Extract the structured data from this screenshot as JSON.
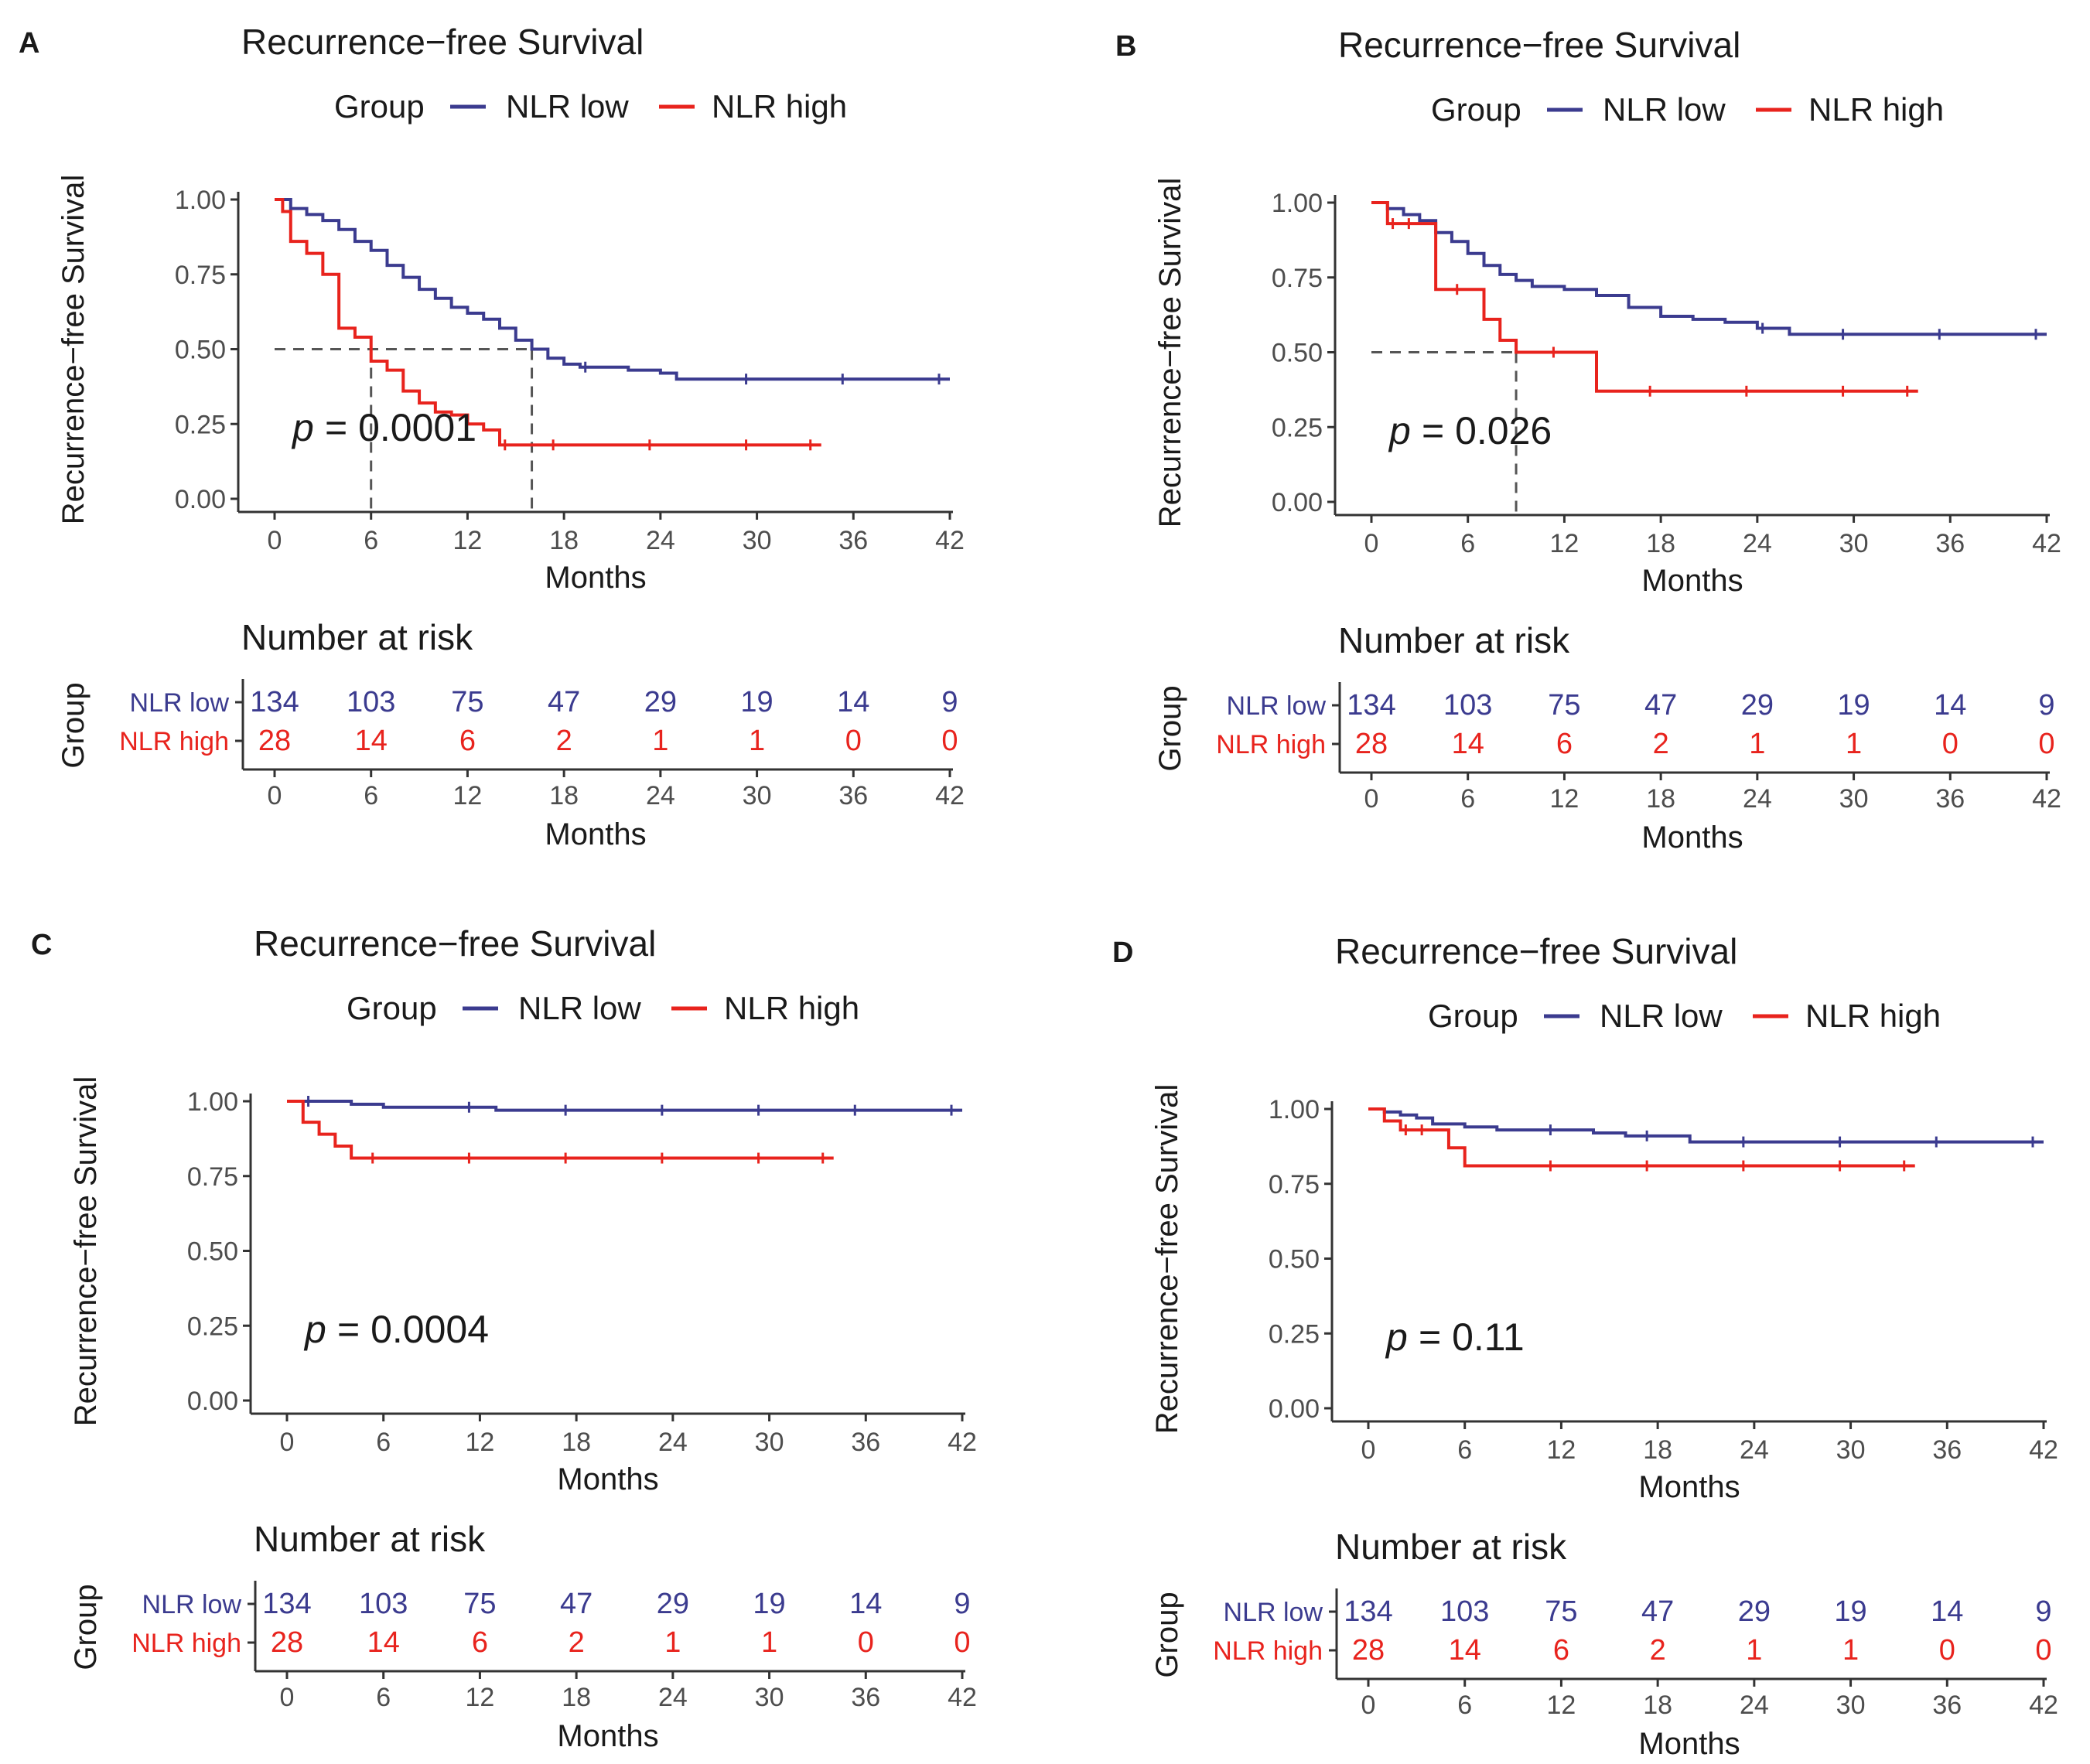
{
  "figure": {
    "panel_count": 4
  },
  "colors": {
    "nlr_low": "#3b3b8f",
    "nlr_high": "#e8231d",
    "median_line": "#555555"
  },
  "chart_data": [
    {
      "panel": "A",
      "type": "line",
      "title": "Recurrence−free Survival",
      "legend_title": "Group",
      "legend_position": "top",
      "xlabel": "Months",
      "ylabel": "Recurrence−free Survival",
      "xlim": [
        0,
        42
      ],
      "ylim": [
        0,
        1
      ],
      "xticks": [
        0,
        6,
        12,
        18,
        24,
        30,
        36,
        42
      ],
      "yticks": [
        "0.00",
        "0.25",
        "0.50",
        "0.75",
        "1.00"
      ],
      "p_label": "p",
      "p_value": "= 0.0001",
      "median_lines": [
        6,
        16
      ],
      "series": [
        {
          "name": "NLR low",
          "color": "#3b3b8f",
          "x": [
            0,
            1,
            2,
            3,
            4,
            5,
            6,
            7,
            8,
            9,
            10,
            11,
            12,
            13,
            14,
            15,
            16,
            17,
            18,
            19,
            20,
            22,
            24,
            25,
            30,
            36,
            42
          ],
          "y": [
            1.0,
            0.97,
            0.95,
            0.93,
            0.9,
            0.86,
            0.83,
            0.78,
            0.74,
            0.7,
            0.67,
            0.64,
            0.62,
            0.6,
            0.57,
            0.53,
            0.5,
            0.47,
            0.45,
            0.44,
            0.44,
            0.43,
            0.42,
            0.4,
            0.4,
            0.4,
            0.4
          ]
        },
        {
          "name": "NLR high",
          "color": "#e8231d",
          "x": [
            0,
            0.5,
            1,
            2,
            3,
            4,
            5,
            6,
            7,
            8,
            9,
            10,
            11,
            12,
            13,
            14,
            15,
            18,
            24,
            30,
            34
          ],
          "y": [
            1.0,
            0.96,
            0.86,
            0.82,
            0.75,
            0.57,
            0.54,
            0.46,
            0.43,
            0.36,
            0.32,
            0.29,
            0.28,
            0.25,
            0.23,
            0.18,
            0.18,
            0.18,
            0.18,
            0.18,
            0.18
          ]
        }
      ],
      "risk_table": {
        "title": "Number at risk",
        "ylabel": "Group",
        "xlabel": "Months",
        "rows": [
          {
            "label": "NLR low",
            "color": "#3b3b8f",
            "values": [
              "134",
              "103",
              "75",
              "47",
              "29",
              "19",
              "14",
              "9"
            ]
          },
          {
            "label": "NLR high",
            "color": "#e8231d",
            "values": [
              "28",
              "14",
              "6",
              "2",
              "1",
              "1",
              "0",
              "0"
            ]
          }
        ]
      }
    },
    {
      "panel": "B",
      "type": "line",
      "title": "Recurrence−free Survival",
      "legend_title": "Group",
      "legend_position": "top",
      "xlabel": "Months",
      "ylabel": "Recurrence−free Survival",
      "xlim": [
        0,
        42
      ],
      "ylim": [
        0,
        1
      ],
      "xticks": [
        0,
        6,
        12,
        18,
        24,
        30,
        36,
        42
      ],
      "yticks": [
        "0.00",
        "0.25",
        "0.50",
        "0.75",
        "1.00"
      ],
      "p_label": "p",
      "p_value": "= 0.026",
      "median_lines": [
        9
      ],
      "series": [
        {
          "name": "NLR low",
          "color": "#3b3b8f",
          "x": [
            0,
            1,
            2,
            3,
            4,
            5,
            6,
            7,
            8,
            9,
            10,
            12,
            14,
            16,
            18,
            20,
            22,
            24,
            25,
            26,
            30,
            36,
            42
          ],
          "y": [
            1.0,
            0.98,
            0.96,
            0.94,
            0.9,
            0.87,
            0.83,
            0.79,
            0.76,
            0.74,
            0.72,
            0.71,
            0.69,
            0.65,
            0.62,
            0.61,
            0.6,
            0.58,
            0.58,
            0.56,
            0.56,
            0.56,
            0.56
          ]
        },
        {
          "name": "NLR high",
          "color": "#e8231d",
          "x": [
            0,
            1,
            2,
            3,
            4,
            6,
            7,
            8,
            9,
            12,
            14,
            18,
            24,
            30,
            34
          ],
          "y": [
            1.0,
            0.93,
            0.93,
            0.93,
            0.71,
            0.71,
            0.61,
            0.54,
            0.5,
            0.5,
            0.37,
            0.37,
            0.37,
            0.37,
            0.37
          ]
        }
      ],
      "risk_table": {
        "title": "Number at risk",
        "ylabel": "Group",
        "xlabel": "Months",
        "rows": [
          {
            "label": "NLR low",
            "color": "#3b3b8f",
            "values": [
              "134",
              "103",
              "75",
              "47",
              "29",
              "19",
              "14",
              "9"
            ]
          },
          {
            "label": "NLR high",
            "color": "#e8231d",
            "values": [
              "28",
              "14",
              "6",
              "2",
              "1",
              "1",
              "0",
              "0"
            ]
          }
        ]
      }
    },
    {
      "panel": "C",
      "type": "line",
      "title": "Recurrence−free Survival",
      "legend_title": "Group",
      "legend_position": "top",
      "xlabel": "Months",
      "ylabel": "Recurrence−free Survival",
      "xlim": [
        0,
        42
      ],
      "ylim": [
        0,
        1
      ],
      "xticks": [
        0,
        6,
        12,
        18,
        24,
        30,
        36,
        42
      ],
      "yticks": [
        "0.00",
        "0.25",
        "0.50",
        "0.75",
        "1.00"
      ],
      "p_label": "p",
      "p_value": "= 0.0004",
      "median_lines": [],
      "series": [
        {
          "name": "NLR low",
          "color": "#3b3b8f",
          "x": [
            0,
            2,
            4,
            6,
            12,
            13,
            18,
            24,
            30,
            36,
            42
          ],
          "y": [
            1.0,
            1.0,
            0.99,
            0.98,
            0.98,
            0.97,
            0.97,
            0.97,
            0.97,
            0.97,
            0.97
          ]
        },
        {
          "name": "NLR high",
          "color": "#e8231d",
          "x": [
            0,
            1,
            2,
            3,
            4,
            6,
            12,
            18,
            24,
            30,
            34
          ],
          "y": [
            1.0,
            0.93,
            0.89,
            0.85,
            0.81,
            0.81,
            0.81,
            0.81,
            0.81,
            0.81,
            0.81
          ]
        }
      ],
      "risk_table": {
        "title": "Number at risk",
        "ylabel": "Group",
        "xlabel": "Months",
        "rows": [
          {
            "label": "NLR low",
            "color": "#3b3b8f",
            "values": [
              "134",
              "103",
              "75",
              "47",
              "29",
              "19",
              "14",
              "9"
            ]
          },
          {
            "label": "NLR high",
            "color": "#e8231d",
            "values": [
              "28",
              "14",
              "6",
              "2",
              "1",
              "1",
              "0",
              "0"
            ]
          }
        ]
      }
    },
    {
      "panel": "D",
      "type": "line",
      "title": "Recurrence−free Survival",
      "legend_title": "Group",
      "legend_position": "top",
      "xlabel": "Months",
      "ylabel": "Recurrence−free Survival",
      "xlim": [
        0,
        42
      ],
      "ylim": [
        0,
        1
      ],
      "xticks": [
        0,
        6,
        12,
        18,
        24,
        30,
        36,
        42
      ],
      "yticks": [
        "0.00",
        "0.25",
        "0.50",
        "0.75",
        "1.00"
      ],
      "p_label": "p",
      "p_value": "= 0.11",
      "median_lines": [],
      "series": [
        {
          "name": "NLR low",
          "color": "#3b3b8f",
          "x": [
            0,
            1,
            2,
            3,
            4,
            6,
            8,
            12,
            14,
            16,
            18,
            20,
            24,
            30,
            36,
            42
          ],
          "y": [
            1.0,
            0.99,
            0.98,
            0.97,
            0.95,
            0.94,
            0.93,
            0.93,
            0.92,
            0.91,
            0.91,
            0.89,
            0.89,
            0.89,
            0.89,
            0.89
          ]
        },
        {
          "name": "NLR high",
          "color": "#e8231d",
          "x": [
            0,
            1,
            2,
            3,
            4,
            5,
            6,
            12,
            18,
            24,
            30,
            34
          ],
          "y": [
            1.0,
            0.96,
            0.93,
            0.93,
            0.93,
            0.87,
            0.81,
            0.81,
            0.81,
            0.81,
            0.81,
            0.81
          ]
        }
      ],
      "risk_table": {
        "title": "Number at risk",
        "ylabel": "Group",
        "xlabel": "Months",
        "rows": [
          {
            "label": "NLR low",
            "color": "#3b3b8f",
            "values": [
              "134",
              "103",
              "75",
              "47",
              "29",
              "19",
              "14",
              "9"
            ]
          },
          {
            "label": "NLR high",
            "color": "#e8231d",
            "values": [
              "28",
              "14",
              "6",
              "2",
              "1",
              "1",
              "0",
              "0"
            ]
          }
        ]
      }
    }
  ]
}
